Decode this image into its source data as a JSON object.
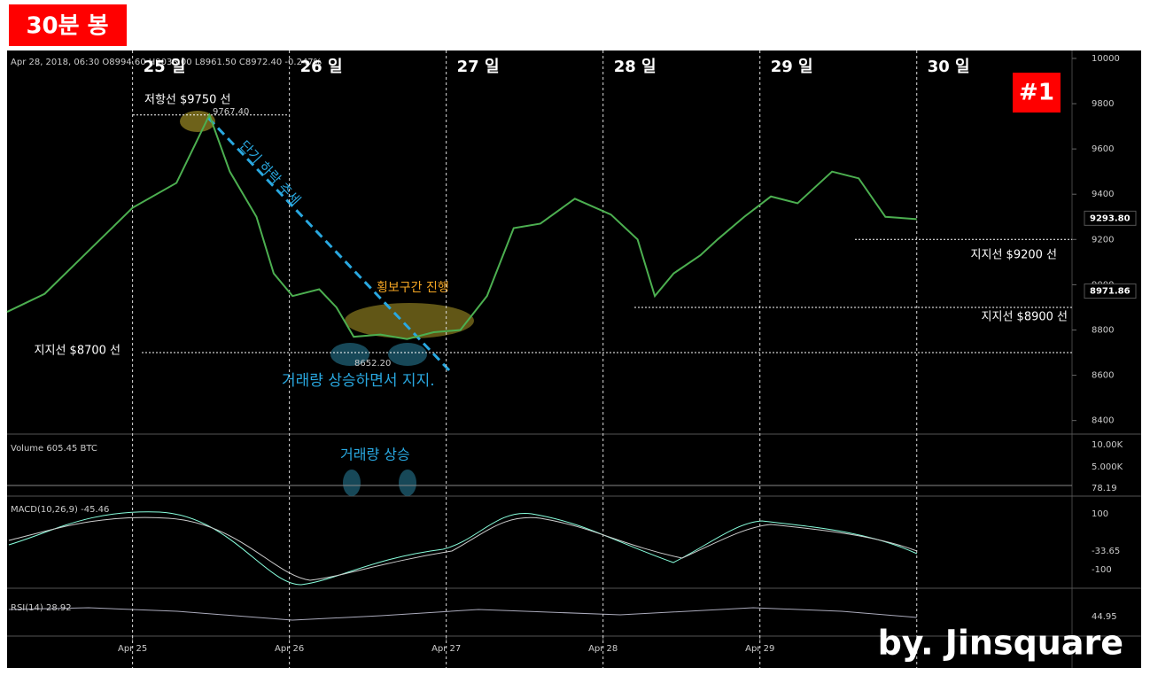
{
  "header": {
    "badge": "30분 봉",
    "number_badge": "#1",
    "watermark": "by. Jinsquare",
    "symbol_info": "Apr 28, 2018, 06:30  O8994.60 H9033.00 L8961.50 C8972.40 -0.247%"
  },
  "chart_data": {
    "type": "line",
    "x": [
      -0.8,
      -0.56,
      -0.28,
      0,
      0.28,
      0.49,
      0.62,
      0.79,
      0.9,
      1.02,
      1.19,
      1.3,
      1.41,
      1.58,
      1.75,
      1.92,
      2.09,
      2.26,
      2.43,
      2.6,
      2.82,
      3.05,
      3.22,
      3.33,
      3.45,
      3.62,
      3.73,
      3.9,
      4.07,
      4.24,
      4.46,
      4.63,
      4.8,
      5.0
    ],
    "series": [
      {
        "name": "BTCUSD",
        "color": "#4caf50",
        "values": [
          8880,
          8960,
          9150,
          9340,
          9450,
          9750,
          9500,
          9300,
          9050,
          8950,
          8980,
          8900,
          8770,
          8780,
          8760,
          8790,
          8800,
          8950,
          9250,
          9270,
          9380,
          9310,
          9200,
          8950,
          9050,
          9130,
          9200,
          9300,
          9390,
          9360,
          9500,
          9470,
          9300,
          9290
        ]
      }
    ],
    "xlim": [
      -0.8,
      5.99
    ],
    "xticks": [
      {
        "value": 0,
        "label": "Apr 25"
      },
      {
        "value": 1,
        "label": "Apr 26"
      },
      {
        "value": 2,
        "label": "Apr 27"
      },
      {
        "value": 3,
        "label": "Apr 28"
      },
      {
        "value": 4,
        "label": "Apr 29"
      }
    ],
    "day_markers": [
      {
        "value": 0,
        "label": "25 일"
      },
      {
        "value": 1,
        "label": "26 일"
      },
      {
        "value": 2,
        "label": "27 일"
      },
      {
        "value": 3,
        "label": "28 일"
      },
      {
        "value": 4,
        "label": "29 일"
      },
      {
        "value": 5,
        "label": "30 일"
      }
    ],
    "ylim": [
      8340,
      10035
    ],
    "yticks": [
      8400,
      8600,
      8800,
      9000,
      9200,
      9400,
      9600,
      9800,
      10000
    ],
    "price_labels": [
      {
        "value": 9293.8,
        "label": "9293.80"
      },
      {
        "value": 8971.86,
        "label": "8971.86"
      }
    ],
    "levels": [
      {
        "value": 9750,
        "label": "저항선 $9750 선"
      },
      {
        "value": 9200,
        "label": "지지선 $9200 선"
      },
      {
        "value": 8900,
        "label": "지지선 $8900 선"
      },
      {
        "value": 8700,
        "label": "지지선 $8700 선"
      }
    ]
  },
  "annotations": {
    "trend": "단기 하락 추세",
    "range": "횡보구간 진행",
    "support_note": "거래량 상승하면서 지지.",
    "volume_note": "거래량 상승",
    "high": "9767.40",
    "low": "8652.20"
  },
  "panes": {
    "volume": {
      "label": "Volume 605.45 BTC",
      "ticks": [
        "10.00K",
        "5.000K",
        "78.19"
      ]
    },
    "macd": {
      "label": "MACD(10,26,9) -45.46",
      "ticks": [
        "100",
        "-33.65",
        "-100"
      ]
    },
    "rsi": {
      "label": "RSI(14) 28.92",
      "ticks": [
        "44.95"
      ]
    }
  }
}
